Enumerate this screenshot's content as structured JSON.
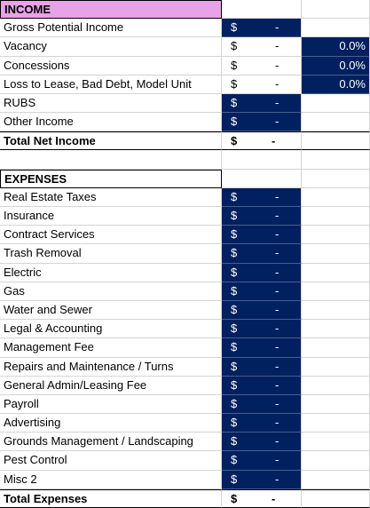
{
  "income": {
    "title": "INCOME",
    "rows": [
      {
        "label": "Gross Potential Income",
        "currency": "$",
        "amount": "-"
      },
      {
        "label": "Vacancy",
        "currency": "$",
        "amount": "-",
        "percent": "0.0%"
      },
      {
        "label": "Concessions",
        "currency": "$",
        "amount": "-",
        "percent": "0.0%"
      },
      {
        "label": "Loss to Lease, Bad Debt, Model Unit",
        "currency": "$",
        "amount": "-",
        "percent": "0.0%"
      },
      {
        "label": "RUBS",
        "currency": "$",
        "amount": "-"
      },
      {
        "label": "Other Income",
        "currency": "$",
        "amount": "-"
      }
    ],
    "total": {
      "label": "Total Net Income",
      "currency": "$",
      "amount": "-"
    }
  },
  "expenses": {
    "title": "EXPENSES",
    "rows": [
      {
        "label": "Real Estate Taxes",
        "currency": "$",
        "amount": "-"
      },
      {
        "label": "Insurance",
        "currency": "$",
        "amount": "-"
      },
      {
        "label": "Contract Services",
        "currency": "$",
        "amount": "-"
      },
      {
        "label": "Trash Removal",
        "currency": "$",
        "amount": "-"
      },
      {
        "label": "Electric",
        "currency": "$",
        "amount": "-"
      },
      {
        "label": "Gas",
        "currency": "$",
        "amount": "-"
      },
      {
        "label": "Water and Sewer",
        "currency": "$",
        "amount": "-"
      },
      {
        "label": "Legal & Accounting",
        "currency": "$",
        "amount": "-"
      },
      {
        "label": "Management Fee",
        "currency": "$",
        "amount": "-"
      },
      {
        "label": "Repairs and Maintenance / Turns",
        "currency": "$",
        "amount": "-"
      },
      {
        "label": "General Admin/Leasing Fee",
        "currency": "$",
        "amount": "-"
      },
      {
        "label": "Payroll",
        "currency": "$",
        "amount": "-"
      },
      {
        "label": "Advertising",
        "currency": "$",
        "amount": "-"
      },
      {
        "label": "Grounds Management / Landscaping",
        "currency": "$",
        "amount": "-"
      },
      {
        "label": "Pest Control",
        "currency": "$",
        "amount": "-"
      },
      {
        "label": "Misc 2",
        "currency": "$",
        "amount": "-"
      }
    ],
    "total": {
      "label": "Total Expenses",
      "currency": "$",
      "amount": "-"
    }
  }
}
